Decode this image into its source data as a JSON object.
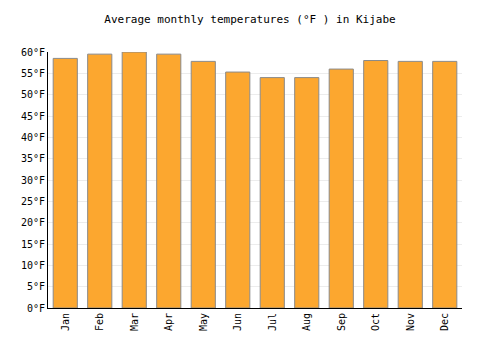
{
  "chart_data": {
    "type": "bar",
    "title": "Average monthly temperatures (°F ) in Kijabe",
    "categories": [
      "Jan",
      "Feb",
      "Mar",
      "Apr",
      "May",
      "Jun",
      "Jul",
      "Aug",
      "Sep",
      "Oct",
      "Nov",
      "Dec"
    ],
    "values": [
      58.5,
      59.5,
      60,
      59.5,
      57.8,
      55.3,
      54,
      54,
      56,
      58,
      57.8,
      57.8
    ],
    "color": "#fca72f",
    "ylim": [
      0,
      60
    ],
    "yticks": [
      {
        "value": 0,
        "label": "0°F"
      },
      {
        "value": 5,
        "label": "5°F"
      },
      {
        "value": 10,
        "label": "10°F"
      },
      {
        "value": 15,
        "label": "15°F"
      },
      {
        "value": 20,
        "label": "20°F"
      },
      {
        "value": 25,
        "label": "25°F"
      },
      {
        "value": 30,
        "label": "30°F"
      },
      {
        "value": 35,
        "label": "35°F"
      },
      {
        "value": 40,
        "label": "40°F"
      },
      {
        "value": 45,
        "label": "45°F"
      },
      {
        "value": 50,
        "label": "50°F"
      },
      {
        "value": 55,
        "label": "55°F"
      },
      {
        "value": 60,
        "label": "60°F"
      }
    ],
    "grid": true
  }
}
